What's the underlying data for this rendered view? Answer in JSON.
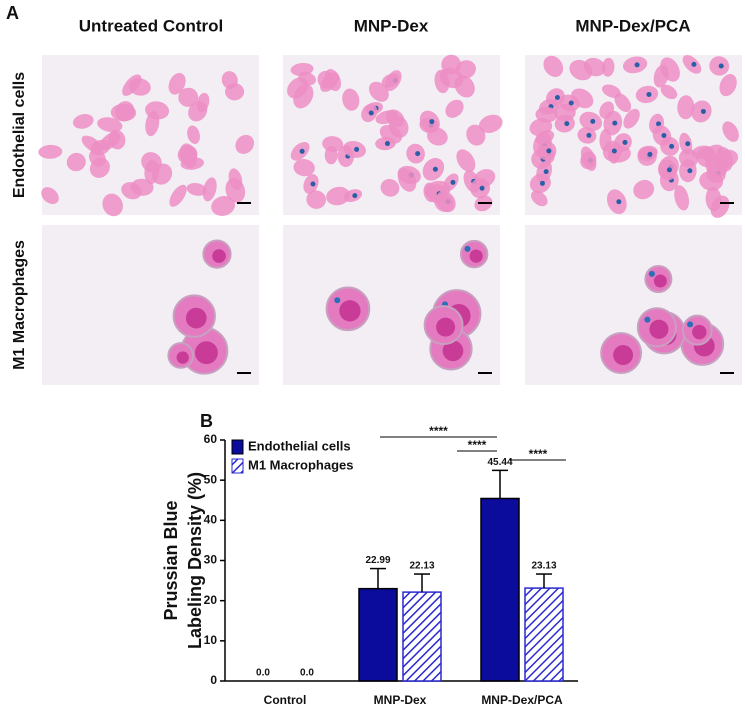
{
  "panel_a": {
    "label": "A",
    "columns": [
      "Untreated Control",
      "MNP-Dex",
      "MNP-Dex/PCA"
    ],
    "rows": [
      "Endothelial cells",
      "M1 Macrophages"
    ]
  },
  "chart_data": {
    "type": "bar",
    "panel_label": "B",
    "ylabel": [
      "Prussian Blue",
      "Labeling Density (%)"
    ],
    "categories": [
      "Control",
      "MNP-Dex",
      "MNP-Dex/PCA"
    ],
    "series": [
      {
        "name": "Endothelial cells",
        "color": "#0b0b9c",
        "pattern": "solid",
        "values": [
          0.0,
          22.99,
          45.44
        ],
        "value_labels": [
          "0.0",
          "22.99",
          "45.44"
        ],
        "errors": [
          0,
          5,
          7
        ]
      },
      {
        "name": "M1 Macrophages",
        "color": "#2a2ad0",
        "pattern": "hatched",
        "values": [
          0.0,
          22.13,
          23.13
        ],
        "value_labels": [
          "0.0",
          "22.13",
          "23.13"
        ],
        "errors": [
          0,
          4.5,
          3.5
        ]
      }
    ],
    "ylim": [
      0,
      60
    ],
    "yticks": [
      0,
      10,
      20,
      30,
      40,
      50,
      60
    ],
    "legend": "upper left",
    "annotations": [
      "****",
      "****",
      "****"
    ]
  }
}
